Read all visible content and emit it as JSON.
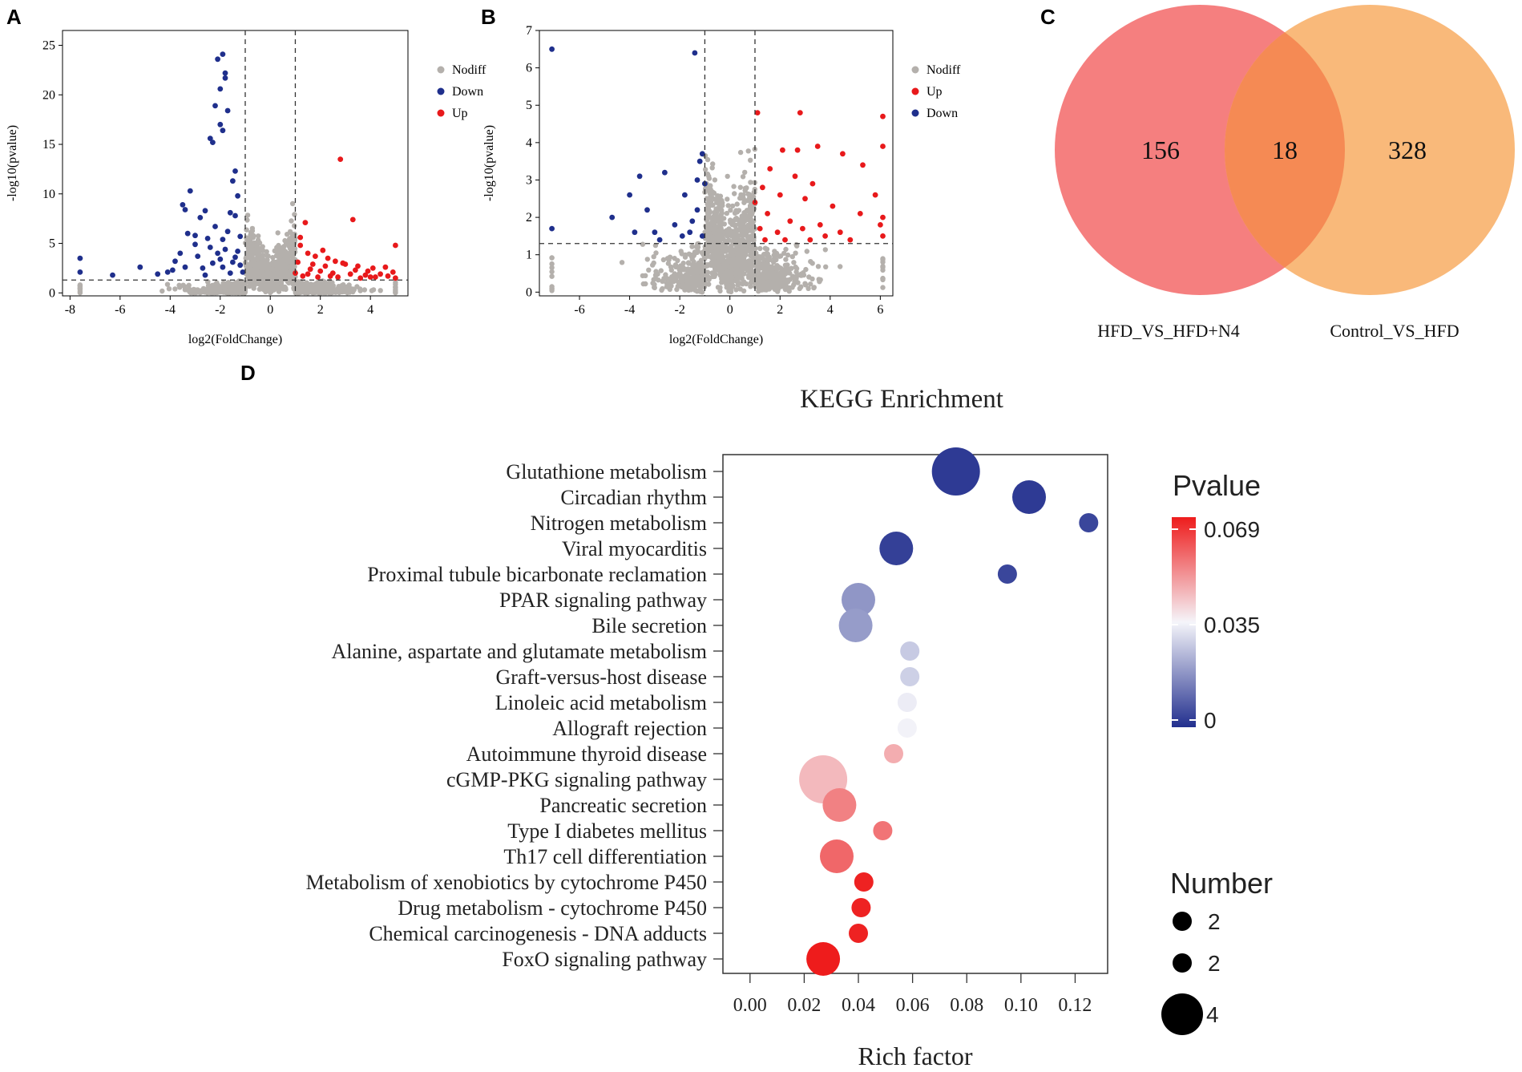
{
  "panels": {
    "a": "A",
    "b": "B",
    "c": "C",
    "d": "D"
  },
  "colors": {
    "nodiff": "#b4b0ac",
    "down": "#1f2f8c",
    "up": "#e8191b",
    "venn_left": "#f57f7f",
    "venn_right": "#f9b97a",
    "venn_overlap": "#f58a54",
    "pval_low": "#222f8e",
    "pval_mid": "#f5f5fa",
    "pval_high": "#ee1c1c"
  },
  "chart_data": [
    {
      "id": "A",
      "type": "scatter",
      "title": "",
      "xlabel": "log2(FoldChange)",
      "ylabel": "-log10(pvalue)",
      "xlim": [
        -8.3,
        5.5
      ],
      "ylim": [
        -0.3,
        26.5
      ],
      "xticks": [
        -8,
        -6,
        -4,
        -2,
        0,
        2,
        4
      ],
      "yticks": [
        0,
        5,
        10,
        15,
        20,
        25
      ],
      "vlines": [
        -1,
        1
      ],
      "hline": 1.3,
      "legend": [
        "Nodiff",
        "Down",
        "Up"
      ],
      "legend_keys": [
        "nodiff",
        "down",
        "up"
      ],
      "series": {
        "down": [
          [
            -1.9,
            24.1
          ],
          [
            -2.1,
            23.6
          ],
          [
            -1.8,
            22.2
          ],
          [
            -1.8,
            21.7
          ],
          [
            -2.0,
            20.6
          ],
          [
            -2.2,
            18.9
          ],
          [
            -1.7,
            18.4
          ],
          [
            -2.0,
            17.0
          ],
          [
            -1.9,
            16.4
          ],
          [
            -2.4,
            15.6
          ],
          [
            -2.3,
            15.2
          ],
          [
            -3.2,
            10.3
          ],
          [
            -1.4,
            12.3
          ],
          [
            -1.5,
            11.3
          ],
          [
            -1.3,
            9.8
          ],
          [
            -2.6,
            8.3
          ],
          [
            -1.6,
            8.1
          ],
          [
            -1.4,
            7.8
          ],
          [
            -3.5,
            8.9
          ],
          [
            -3.4,
            8.4
          ],
          [
            -2.8,
            7.6
          ],
          [
            -2.2,
            6.7
          ],
          [
            -3.3,
            6.0
          ],
          [
            -3.0,
            5.8
          ],
          [
            -2.5,
            5.5
          ],
          [
            -1.9,
            5.4
          ],
          [
            -1.2,
            5.7
          ],
          [
            -3.0,
            4.9
          ],
          [
            -2.4,
            4.6
          ],
          [
            -1.8,
            4.4
          ],
          [
            -1.3,
            4.2
          ],
          [
            -3.6,
            4.0
          ],
          [
            -2.9,
            3.7
          ],
          [
            -2.0,
            3.4
          ],
          [
            -1.5,
            3.1
          ],
          [
            -3.9,
            2.3
          ],
          [
            -4.1,
            2.1
          ],
          [
            -3.4,
            2.6
          ],
          [
            -2.7,
            2.5
          ],
          [
            -1.9,
            2.6
          ],
          [
            -1.2,
            2.8
          ],
          [
            -5.2,
            2.6
          ],
          [
            -6.3,
            1.8
          ],
          [
            -7.6,
            3.5
          ],
          [
            -7.6,
            2.1
          ],
          [
            -4.5,
            1.9
          ],
          [
            -2.6,
            1.8
          ],
          [
            -1.6,
            2.0
          ],
          [
            -1.1,
            2.1
          ],
          [
            -2.3,
            3.0
          ],
          [
            -1.4,
            3.6
          ],
          [
            -3.8,
            3.2
          ],
          [
            -1.7,
            6.2
          ],
          [
            -2.1,
            4.0
          ]
        ],
        "up": [
          [
            2.8,
            13.5
          ],
          [
            3.3,
            7.4
          ],
          [
            1.4,
            7.1
          ],
          [
            5.0,
            4.8
          ],
          [
            1.2,
            4.8
          ],
          [
            1.5,
            4.0
          ],
          [
            1.8,
            3.7
          ],
          [
            2.3,
            3.5
          ],
          [
            2.6,
            3.2
          ],
          [
            3.0,
            2.9
          ],
          [
            3.5,
            2.7
          ],
          [
            4.1,
            2.5
          ],
          [
            4.6,
            2.6
          ],
          [
            1.1,
            3.1
          ],
          [
            1.6,
            2.4
          ],
          [
            2.0,
            2.2
          ],
          [
            2.5,
            2.0
          ],
          [
            3.2,
            1.9
          ],
          [
            3.8,
            1.8
          ],
          [
            4.4,
            1.9
          ],
          [
            4.9,
            2.1
          ],
          [
            1.3,
            1.7
          ],
          [
            1.9,
            1.6
          ],
          [
            2.7,
            1.6
          ],
          [
            3.6,
            1.5
          ],
          [
            4.2,
            1.6
          ],
          [
            1.0,
            2.0
          ],
          [
            1.2,
            5.6
          ],
          [
            2.1,
            4.3
          ],
          [
            2.9,
            3.0
          ],
          [
            3.9,
            2.2
          ],
          [
            4.7,
            1.7
          ],
          [
            5.0,
            1.5
          ],
          [
            1.7,
            2.9
          ],
          [
            2.2,
            2.7
          ],
          [
            3.4,
            2.3
          ],
          [
            1.5,
            1.9
          ],
          [
            2.4,
            1.7
          ],
          [
            4.0,
            1.6
          ]
        ]
      },
      "nodiff_seed": 11
    },
    {
      "id": "B",
      "type": "scatter",
      "title": "",
      "xlabel": "log2(FoldChange)",
      "ylabel": "-log10(pvalue)",
      "xlim": [
        -7.6,
        6.5
      ],
      "ylim": [
        -0.1,
        7.0
      ],
      "xticks": [
        -6,
        -4,
        -2,
        0,
        2,
        4,
        6
      ],
      "yticks": [
        0,
        1,
        2,
        3,
        4,
        5,
        6,
        7
      ],
      "vlines": [
        -1,
        1
      ],
      "hline": 1.3,
      "legend": [
        "Nodiff",
        "Up",
        "Down"
      ],
      "legend_keys": [
        "nodiff",
        "up",
        "down"
      ],
      "series": {
        "down": [
          [
            -7.1,
            6.5
          ],
          [
            -1.4,
            6.4
          ],
          [
            -3.6,
            3.1
          ],
          [
            -2.6,
            3.2
          ],
          [
            -4.0,
            2.6
          ],
          [
            -4.7,
            2.0
          ],
          [
            -3.3,
            2.2
          ],
          [
            -1.8,
            2.6
          ],
          [
            -1.3,
            3.0
          ],
          [
            -1.1,
            3.7
          ],
          [
            -1.2,
            3.5
          ],
          [
            -1.0,
            2.9
          ],
          [
            -2.2,
            1.8
          ],
          [
            -1.6,
            1.6
          ],
          [
            -3.0,
            1.6
          ],
          [
            -3.8,
            1.6
          ],
          [
            -1.3,
            2.2
          ],
          [
            -1.1,
            1.5
          ],
          [
            -2.8,
            1.4
          ],
          [
            -1.9,
            1.5
          ],
          [
            -1.5,
            1.9
          ],
          [
            -7.1,
            1.7
          ]
        ],
        "up": [
          [
            1.1,
            4.8
          ],
          [
            2.8,
            4.8
          ],
          [
            3.5,
            3.9
          ],
          [
            2.1,
            3.8
          ],
          [
            2.7,
            3.8
          ],
          [
            4.5,
            3.7
          ],
          [
            5.3,
            3.4
          ],
          [
            6.1,
            4.7
          ],
          [
            6.1,
            3.9
          ],
          [
            1.6,
            3.3
          ],
          [
            2.6,
            3.1
          ],
          [
            3.3,
            2.9
          ],
          [
            1.3,
            2.8
          ],
          [
            2.0,
            2.6
          ],
          [
            3.0,
            2.5
          ],
          [
            4.1,
            2.3
          ],
          [
            5.2,
            2.1
          ],
          [
            6.1,
            2.0
          ],
          [
            1.0,
            2.4
          ],
          [
            1.5,
            2.1
          ],
          [
            2.4,
            1.9
          ],
          [
            3.6,
            1.8
          ],
          [
            4.4,
            1.6
          ],
          [
            1.2,
            1.7
          ],
          [
            1.9,
            1.6
          ],
          [
            2.9,
            1.7
          ],
          [
            3.8,
            1.5
          ],
          [
            6.1,
            1.5
          ],
          [
            1.4,
            1.4
          ],
          [
            2.2,
            1.4
          ],
          [
            3.2,
            1.4
          ],
          [
            4.8,
            1.4
          ],
          [
            5.8,
            2.6
          ],
          [
            6.0,
            1.8
          ]
        ]
      },
      "nodiff_seed": 29
    },
    {
      "id": "C",
      "type": "venn",
      "sets": [
        {
          "label": "HFD_VS_HFD+N4",
          "only": 156
        },
        {
          "label": "Control_VS_HFD",
          "only": 328
        }
      ],
      "overlap": 18
    },
    {
      "id": "D",
      "type": "scatter",
      "title": "KEGG Enrichment",
      "xlabel": "Rich factor",
      "ylabel": "",
      "xlim": [
        -0.01,
        0.132
      ],
      "xticks": [
        "0.00",
        "0.02",
        "0.04",
        "0.06",
        "0.08",
        "0.10",
        "0.12"
      ],
      "categories": [
        "Glutathione metabolism",
        "Circadian rhythm",
        "Nitrogen metabolism",
        "Viral myocarditis",
        "Proximal tubule bicarbonate reclamation",
        "PPAR signaling pathway",
        "Bile secretion",
        "Alanine, aspartate and glutamate metabolism",
        "Graft-versus-host disease",
        "Linoleic acid metabolism",
        "Allograft rejection",
        "Autoimmune thyroid disease",
        "cGMP-PKG signaling pathway",
        "Pancreatic secretion",
        "Type I diabetes mellitus",
        "Th17 cell differentiation",
        "Metabolism of xenobiotics by cytochrome P450",
        "Drug metabolism - cytochrome P450",
        "Chemical carcinogenesis - DNA adducts",
        "FoxO signaling pathway"
      ],
      "rich_factor": [
        0.076,
        0.103,
        0.125,
        0.054,
        0.095,
        0.04,
        0.039,
        0.059,
        0.059,
        0.058,
        0.058,
        0.053,
        0.027,
        0.033,
        0.049,
        0.032,
        0.042,
        0.041,
        0.04,
        0.027
      ],
      "pvalue": [
        0.002,
        0.002,
        0.004,
        0.003,
        0.004,
        0.018,
        0.019,
        0.027,
        0.028,
        0.033,
        0.034,
        0.046,
        0.044,
        0.053,
        0.055,
        0.057,
        0.068,
        0.068,
        0.068,
        0.069
      ],
      "number": [
        4,
        3,
        2,
        3,
        2,
        3,
        3,
        2,
        2,
        2,
        2,
        2,
        4,
        3,
        2,
        3,
        2,
        2,
        2,
        3
      ],
      "colorbar": {
        "title": "Pvalue",
        "ticks": [
          "0.069",
          "0.035",
          "0"
        ]
      },
      "size_legend": {
        "title": "Number",
        "labels": [
          "2",
          "2",
          "4"
        ]
      }
    }
  ]
}
